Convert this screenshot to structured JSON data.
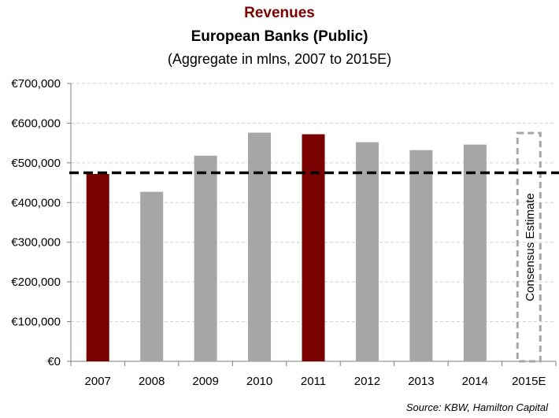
{
  "header": {
    "title": "Revenues",
    "subtitle": "European Banks (Public)",
    "subtitle2": "(Aggregate in mlns, 2007 to 2015E)"
  },
  "source": "Source: KBW, Hamilton Capital",
  "chart_data": {
    "type": "bar",
    "categories": [
      "2007",
      "2008",
      "2009",
      "2010",
      "2011",
      "2012",
      "2013",
      "2014",
      "2015E"
    ],
    "values": [
      472000,
      427000,
      518000,
      576000,
      572000,
      552000,
      532000,
      546000,
      575000
    ],
    "highlighted": [
      "2007",
      "2011"
    ],
    "estimate_category": "2015E",
    "estimate_label": "Consensus Estimate",
    "reference_line": 475000,
    "ylim": [
      0,
      700000
    ],
    "yticks": [
      0,
      100000,
      200000,
      300000,
      400000,
      500000,
      600000,
      700000
    ],
    "ytick_labels": [
      "€0",
      "€100,000",
      "€200,000",
      "€300,000",
      "€400,000",
      "€500,000",
      "€600,000",
      "€700,000"
    ],
    "grid": true,
    "colors": {
      "highlight": "#7b0000",
      "default": "#a6a6a6",
      "estimate_border": "#a6a6a6",
      "reference_line": "#000000",
      "grid": "#d0d0d0",
      "title": "#7b0000"
    }
  }
}
